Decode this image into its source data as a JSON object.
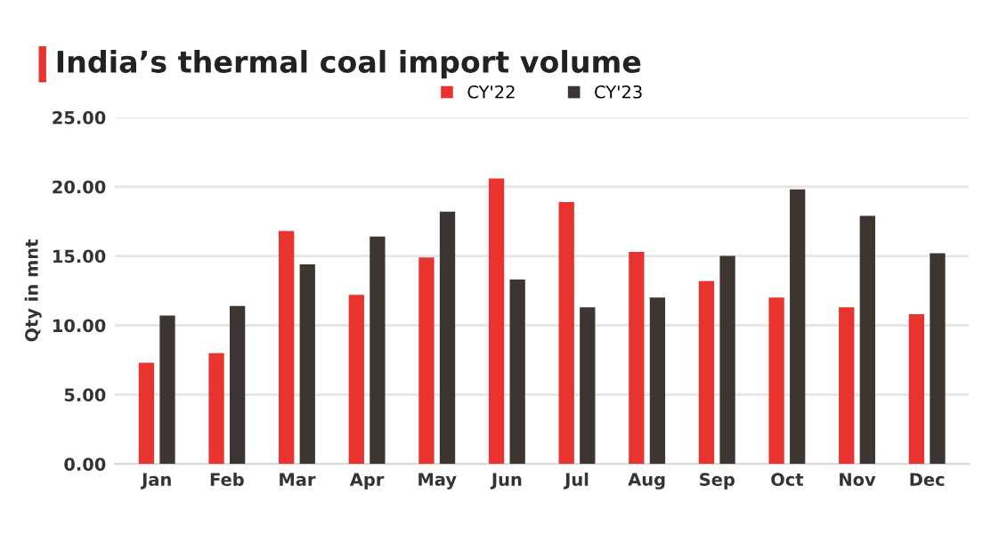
{
  "chart_data": {
    "type": "bar",
    "title": "India’s thermal coal import volume",
    "ylabel": "Qty in mnt",
    "categories": [
      "Jan",
      "Feb",
      "Mar",
      "Apr",
      "May",
      "Jun",
      "Jul",
      "Aug",
      "Sep",
      "Oct",
      "Nov",
      "Dec"
    ],
    "series": [
      {
        "name": "CY'22",
        "color": "#e8332f",
        "values": [
          7.3,
          8.0,
          16.8,
          12.2,
          14.9,
          20.6,
          18.9,
          15.3,
          13.2,
          12.0,
          11.3,
          10.8
        ]
      },
      {
        "name": "CY'23",
        "color": "#3d3531",
        "values": [
          10.7,
          11.4,
          14.4,
          16.4,
          18.2,
          13.3,
          11.3,
          12.0,
          15.0,
          19.8,
          17.9,
          15.2
        ]
      }
    ],
    "ylim": [
      0,
      25
    ],
    "yticks": [
      {
        "value": 0,
        "label": "0.00"
      },
      {
        "value": 5,
        "label": "5.00"
      },
      {
        "value": 10,
        "label": "10.00"
      },
      {
        "value": 15,
        "label": "15.00"
      },
      {
        "value": 20,
        "label": "20.00"
      },
      {
        "value": 25,
        "label": "25.00"
      }
    ],
    "grid": "y",
    "legend": "top"
  }
}
